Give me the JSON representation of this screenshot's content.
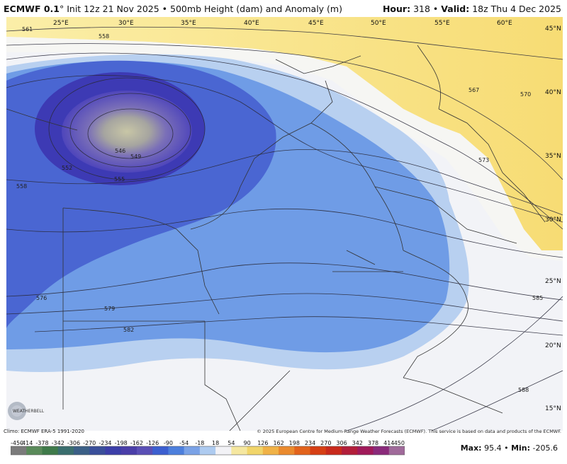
{
  "header": {
    "model": "ECMWF 0.1",
    "degree_sym": "°",
    "init": "Init 12z 21 Nov 2025",
    "bullet": "•",
    "field": "500mb Height (dam) and Anomaly (m)",
    "hour_label": "Hour:",
    "hour_value": "318",
    "valid_label": "Valid:",
    "valid_value": "18z Thu 4 Dec 2025"
  },
  "map": {
    "lon_labels": [
      "25°E",
      "30°E",
      "35°E",
      "40°E",
      "45°E",
      "50°E",
      "55°E",
      "60°E"
    ],
    "lat_labels": [
      "45°N",
      "40°N",
      "35°N",
      "30°N",
      "25°N",
      "20°N",
      "15°N"
    ],
    "contours": [
      "561",
      "558",
      "546",
      "549",
      "552",
      "555",
      "558",
      "576",
      "579",
      "582",
      "567",
      "570",
      "573",
      "585",
      "588"
    ],
    "colors": {
      "low_center": "#c9c7a8",
      "deep": "#3f3fb8",
      "mid": "#4f7fdc",
      "light": "#a7c6ef",
      "neutral": "#f2f2f6",
      "warm": "#f8e382"
    }
  },
  "footer": {
    "climo": "Climo: ECMWF ERA-5 1991-2020",
    "copyright": "© 2025 European Centre for Medium-Range Weather Forecasts (ECMWF). This service is based on data and products of the ECMWF.",
    "logo_text": "WEATHERBELL"
  },
  "scale": {
    "ticks": [
      "-450",
      "-414",
      "-378",
      "-342",
      "-306",
      "-270",
      "-234",
      "-198",
      "-162",
      "-126",
      "-90",
      "-54",
      "-18",
      "18",
      "54",
      "90",
      "126",
      "162",
      "198",
      "234",
      "270",
      "306",
      "342",
      "378",
      "414",
      "450"
    ],
    "colors": [
      "#7b7b7b",
      "#5a8a5a",
      "#3f7a4a",
      "#3a6e6e",
      "#3b5f86",
      "#3a4f9a",
      "#3c3fa8",
      "#4a3ea8",
      "#5a4fb5",
      "#3c5fd0",
      "#4d7fdc",
      "#7aa2e6",
      "#aecbf0",
      "#f2f2f6",
      "#f5e7a0",
      "#f1d56a",
      "#f0b247",
      "#ea8a2e",
      "#e2631c",
      "#d63f14",
      "#c82a1c",
      "#b21e3a",
      "#a01a5a",
      "#8a2a7a",
      "#a06a9a"
    ]
  },
  "stats": {
    "max_label": "Max:",
    "max_value": "95.4",
    "sep": "•",
    "min_label": "Min:",
    "min_value": "-205.6"
  }
}
